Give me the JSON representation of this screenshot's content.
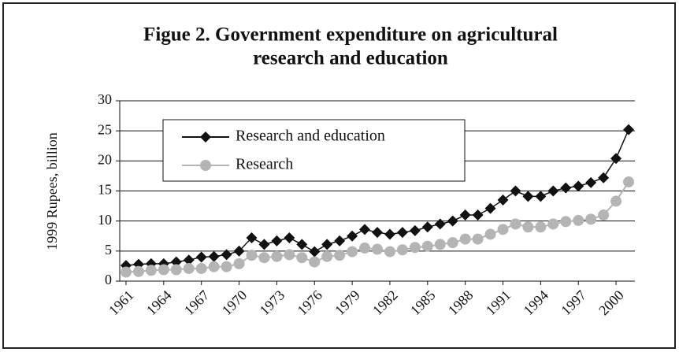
{
  "chart_data": {
    "type": "line",
    "title": [
      "Figue 2. Government expenditure on agricultural",
      "research and education"
    ],
    "ylabel": "1999 Rupees, billion",
    "categories": [
      "1961",
      null,
      null,
      "1964",
      null,
      null,
      "1967",
      null,
      null,
      "1970",
      null,
      null,
      "1973",
      null,
      null,
      "1976",
      null,
      null,
      "1979",
      null,
      null,
      "1982",
      null,
      null,
      "1985",
      null,
      null,
      "1988",
      null,
      null,
      "1991",
      null,
      null,
      "1994",
      null,
      null,
      "1997",
      null,
      null,
      "2000",
      null
    ],
    "series": [
      {
        "name": "Research and education",
        "color": "#111111",
        "marker": "diamond",
        "values": [
          2.6,
          2.8,
          2.9,
          2.9,
          3.2,
          3.5,
          4.0,
          4.1,
          4.4,
          5.0,
          7.2,
          6.1,
          6.7,
          7.2,
          6.1,
          4.9,
          6.1,
          6.7,
          7.5,
          8.6,
          8.1,
          7.8,
          8.1,
          8.4,
          9.0,
          9.5,
          10.0,
          11.0,
          11.0,
          12.1,
          13.5,
          15.0,
          14.1,
          14.1,
          15.0,
          15.5,
          15.8,
          16.4,
          17.2,
          20.4,
          25.2
        ]
      },
      {
        "name": "Research",
        "color": "#b4b4b4",
        "marker": "circle",
        "values": [
          1.5,
          1.6,
          1.8,
          1.9,
          1.9,
          2.1,
          2.1,
          2.4,
          2.4,
          2.9,
          4.3,
          3.9,
          4.1,
          4.4,
          3.9,
          3.2,
          4.1,
          4.3,
          4.9,
          5.5,
          5.3,
          4.9,
          5.2,
          5.6,
          5.8,
          6.1,
          6.4,
          7.0,
          7.0,
          7.8,
          8.6,
          9.5,
          9.0,
          9.0,
          9.5,
          9.9,
          10.1,
          10.3,
          11.0,
          13.3,
          16.5
        ]
      }
    ],
    "ylim": [
      0,
      30
    ],
    "yticks": [
      0,
      5,
      10,
      15,
      20,
      25,
      30
    ],
    "grid": true,
    "legend": "upper left"
  }
}
